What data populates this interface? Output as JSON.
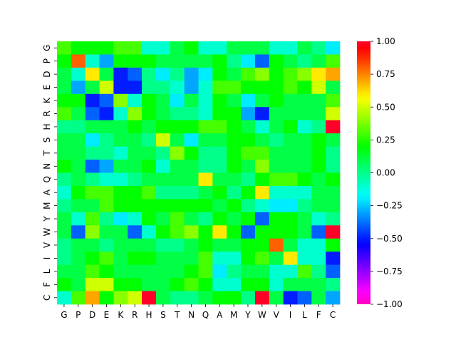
{
  "chart_data": {
    "type": "heatmap",
    "labels": [
      "G",
      "P",
      "D",
      "E",
      "K",
      "R",
      "H",
      "S",
      "T",
      "N",
      "Q",
      "A",
      "M",
      "Y",
      "W",
      "V",
      "I",
      "L",
      "F",
      "C"
    ],
    "row_labels_shown": [
      "G",
      "P",
      "D",
      "E",
      "K",
      "R",
      "H",
      "S",
      "T",
      "N",
      "Q",
      "A",
      "M",
      "Y",
      "W",
      "V",
      "I",
      "L",
      "F",
      "C"
    ],
    "col_labels_shown": [
      "G",
      "P",
      "D",
      "E",
      "K",
      "R",
      "H",
      "S",
      "T",
      "N",
      "Q",
      "A",
      "M",
      "Y",
      "W",
      "V",
      "I",
      "L",
      "F",
      "C"
    ],
    "colormap": "gist_rainbow",
    "vmin": -1.0,
    "vmax": 1.0,
    "colorbar_ticks": [
      "1.00",
      "0.75",
      "0.50",
      "0.25",
      "0.00",
      "−0.25",
      "−0.50",
      "−0.75",
      "−1.00"
    ],
    "colorbar_tick_values": [
      1.0,
      0.75,
      0.5,
      0.25,
      0.0,
      -0.25,
      -0.5,
      -0.75,
      -1.0
    ],
    "values": [
      [
        0.3,
        0.2,
        0.2,
        0.2,
        0.3,
        0.3,
        -0.1,
        -0.1,
        0.1,
        0.2,
        -0.1,
        -0.1,
        0.1,
        0.1,
        0.1,
        -0.1,
        -0.1,
        0.1,
        0.0,
        -0.2
      ],
      [
        0.2,
        0.8,
        -0.1,
        -0.3,
        0.2,
        0.2,
        0.2,
        0.1,
        0.1,
        0.1,
        0.1,
        0.2,
        0.0,
        -0.2,
        -0.4,
        0.2,
        0.1,
        0.0,
        0.1,
        0.3
      ],
      [
        0.1,
        -0.1,
        0.6,
        0.1,
        -0.5,
        -0.4,
        0.0,
        -0.2,
        0.0,
        -0.3,
        -0.2,
        0.2,
        0.1,
        0.3,
        0.4,
        0.2,
        0.3,
        0.4,
        0.6,
        0.7
      ],
      [
        0.1,
        -0.3,
        0.1,
        0.5,
        -0.5,
        -0.5,
        0.0,
        0.0,
        -0.1,
        -0.3,
        -0.1,
        0.3,
        0.3,
        0.2,
        0.2,
        0.2,
        0.3,
        0.2,
        0.5,
        0.1
      ],
      [
        0.2,
        0.2,
        -0.5,
        -0.4,
        0.4,
        -0.1,
        0.2,
        0.1,
        -0.2,
        0.1,
        -0.1,
        0.2,
        0.1,
        -0.2,
        0.1,
        0.2,
        0.1,
        0.1,
        0.1,
        0.3
      ],
      [
        0.3,
        0.1,
        -0.4,
        -0.5,
        -0.1,
        0.4,
        0.2,
        0.1,
        0.0,
        0.0,
        -0.1,
        0.2,
        0.2,
        -0.3,
        -0.5,
        0.1,
        0.1,
        0.1,
        0.1,
        0.5
      ],
      [
        0.0,
        0.0,
        0.1,
        0.1,
        0.1,
        0.2,
        0.1,
        0.2,
        0.2,
        0.2,
        0.3,
        0.3,
        0.2,
        0.1,
        -0.1,
        0.1,
        0.2,
        -0.1,
        0.0,
        1.0
      ],
      [
        0.1,
        0.1,
        -0.2,
        0.0,
        0.1,
        0.1,
        0.0,
        0.5,
        0.1,
        -0.2,
        0.1,
        0.1,
        0.2,
        0.2,
        0.1,
        0.0,
        0.1,
        0.1,
        0.2,
        0.1
      ],
      [
        0.1,
        0.1,
        0.0,
        0.0,
        -0.1,
        0.1,
        0.1,
        0.0,
        0.4,
        0.2,
        0.0,
        0.0,
        0.2,
        0.3,
        0.3,
        0.1,
        0.1,
        0.1,
        0.2,
        0.0
      ],
      [
        0.2,
        0.1,
        -0.4,
        -0.3,
        0.1,
        0.1,
        0.2,
        -0.1,
        0.1,
        0.1,
        0.0,
        0.0,
        0.2,
        0.1,
        0.4,
        0.1,
        0.1,
        0.1,
        0.2,
        0.0
      ],
      [
        0.0,
        0.1,
        0.0,
        -0.1,
        -0.1,
        0.0,
        0.1,
        0.1,
        0.1,
        0.1,
        0.6,
        0.1,
        0.1,
        0.0,
        0.2,
        0.3,
        0.3,
        0.2,
        0.1,
        0.2
      ],
      [
        -0.1,
        0.2,
        0.3,
        0.3,
        0.2,
        0.2,
        0.3,
        0.0,
        0.0,
        0.0,
        0.1,
        0.2,
        0.0,
        0.2,
        0.6,
        -0.1,
        -0.1,
        -0.1,
        0.1,
        0.1
      ],
      [
        0.0,
        0.1,
        0.1,
        0.3,
        0.2,
        0.2,
        0.2,
        0.2,
        0.2,
        0.2,
        0.2,
        0.1,
        0.2,
        0.0,
        -0.1,
        -0.2,
        -0.2,
        0.0,
        0.1,
        0.1
      ],
      [
        0.1,
        -0.1,
        0.3,
        0.0,
        -0.2,
        -0.1,
        0.2,
        0.1,
        0.3,
        0.1,
        0.0,
        0.2,
        0.1,
        0.2,
        -0.4,
        0.2,
        0.2,
        0.1,
        -0.1,
        0.0
      ],
      [
        0.1,
        -0.4,
        0.4,
        0.1,
        0.1,
        -0.4,
        -0.1,
        0.2,
        0.3,
        0.4,
        0.2,
        0.6,
        0.2,
        -0.4,
        0.2,
        0.2,
        0.2,
        0.1,
        -0.4,
        1.0
      ],
      [
        0.0,
        0.1,
        0.1,
        0.0,
        0.1,
        0.1,
        0.1,
        0.0,
        0.0,
        0.1,
        0.2,
        0.1,
        0.1,
        0.2,
        0.2,
        0.8,
        0.1,
        -0.1,
        -0.1,
        0.2
      ],
      [
        0.0,
        0.1,
        0.2,
        0.3,
        0.1,
        0.2,
        0.2,
        0.1,
        0.1,
        0.1,
        0.3,
        -0.1,
        -0.1,
        0.2,
        0.3,
        0.1,
        0.6,
        -0.1,
        -0.1,
        -0.5
      ],
      [
        0.1,
        0.1,
        0.3,
        0.2,
        0.1,
        0.1,
        0.1,
        0.1,
        0.1,
        0.2,
        0.3,
        -0.2,
        0.0,
        0.1,
        0.1,
        -0.1,
        -0.1,
        0.3,
        0.0,
        -0.4
      ],
      [
        0.2,
        0.1,
        0.5,
        0.5,
        0.2,
        0.2,
        0.1,
        0.1,
        0.2,
        0.3,
        0.2,
        -0.1,
        -0.1,
        0.2,
        0.2,
        -0.1,
        0.1,
        0.1,
        0.1,
        0.0
      ],
      [
        -0.1,
        0.3,
        0.7,
        0.2,
        0.4,
        0.5,
        1.0,
        0.1,
        0.0,
        0.0,
        0.1,
        0.2,
        0.2,
        0.0,
        1.0,
        0.1,
        -0.5,
        -0.4,
        0.1,
        -0.3
      ]
    ]
  }
}
